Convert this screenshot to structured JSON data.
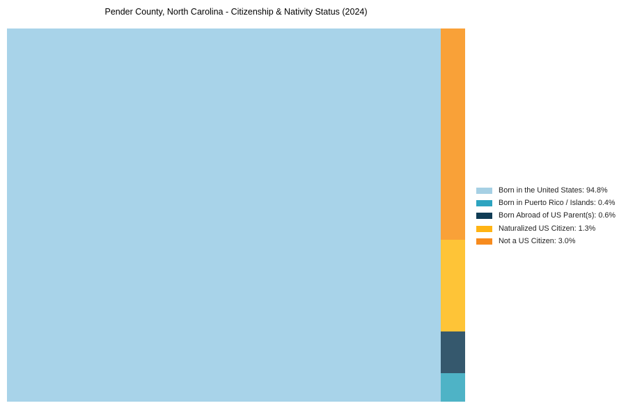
{
  "title": "Pender County, North Carolina - Citizenship & Nativity Status (2024)",
  "colors": {
    "background": "#ffffff",
    "title_text": "#000000",
    "legend_text": "#1f1f1f"
  },
  "chart_data": {
    "type": "treemap",
    "title": "Pender County, North Carolina - Citizenship & Nativity Status (2024)",
    "unit": "%",
    "legend_position": "right",
    "layout": "slice-and-dice: largest segment fills full height on the left; remaining segments stacked top-to-bottom (descending value) in a narrow right column",
    "segments": [
      {
        "label": "Born in the United States",
        "value": 94.8,
        "tile_color": "#a8d3e9",
        "legend_color": "#a6d0e4"
      },
      {
        "label": "Born in Puerto Rico / Islands",
        "value": 0.4,
        "tile_color": "#4eb3c6",
        "legend_color": "#2da4c0"
      },
      {
        "label": "Born Abroad of US Parent(s)",
        "value": 0.6,
        "tile_color": "#35586d",
        "legend_color": "#103c55"
      },
      {
        "label": "Naturalized US Citizen",
        "value": 1.3,
        "tile_color": "#fec437",
        "legend_color": "#ffb414"
      },
      {
        "label": "Not a US Citizen",
        "value": 3.0,
        "tile_color": "#f9a138",
        "legend_color": "#f78b1e"
      }
    ]
  }
}
